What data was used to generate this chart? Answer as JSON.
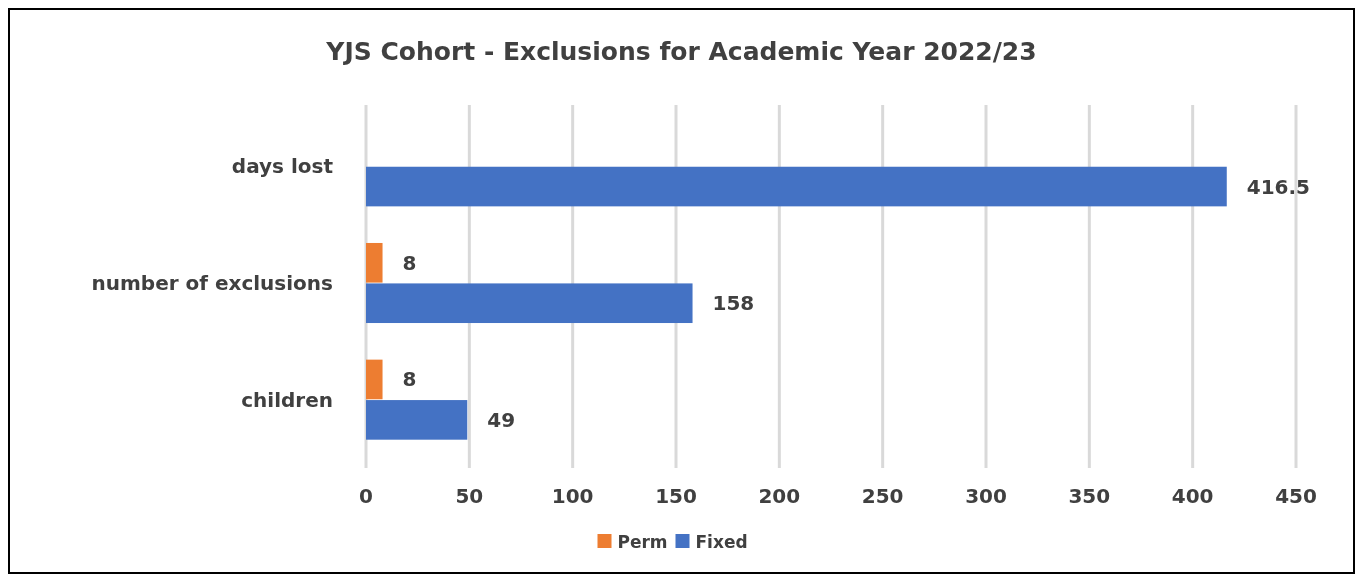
{
  "chart_data": {
    "type": "bar",
    "orientation": "horizontal",
    "title": "YJS Cohort - Exclusions  for Academic Year 2022/23",
    "categories": [
      "days lost",
      "number of exclusions",
      "children"
    ],
    "series": [
      {
        "name": "Perm",
        "color": "#ed7d31",
        "values": [
          null,
          8,
          8
        ]
      },
      {
        "name": "Fixed",
        "color": "#4472c4",
        "values": [
          416.5,
          158,
          49
        ]
      }
    ],
    "xlim": [
      0,
      450
    ],
    "xticks": [
      0,
      50,
      100,
      150,
      200,
      250,
      300,
      350,
      400,
      450
    ],
    "grid": "x",
    "legend": "bottom",
    "data_labels": true
  }
}
